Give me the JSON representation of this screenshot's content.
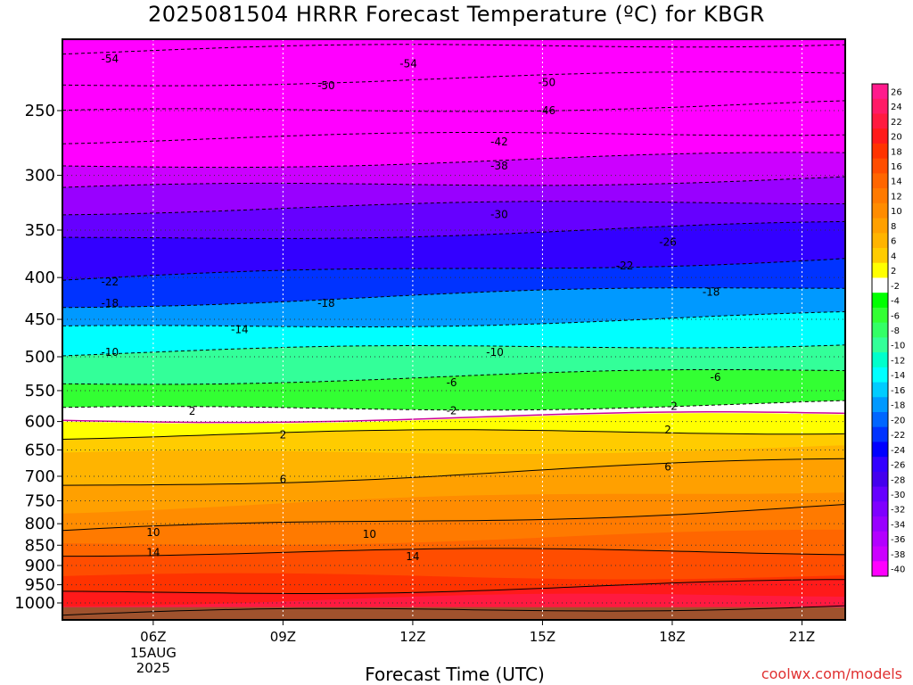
{
  "chart_data": {
    "type": "heatmap",
    "title": "2025081504 HRRR Forecast Temperature (ºC) for KBGR",
    "xlabel": "Forecast Time (UTC)",
    "ylabel": "",
    "credit": "coolwx.com/models",
    "x_ticks": [
      {
        "hour": 6,
        "label": "06Z",
        "sub": [
          "15AUG",
          "2025"
        ]
      },
      {
        "hour": 9,
        "label": "09Z"
      },
      {
        "hour": 12,
        "label": "12Z"
      },
      {
        "hour": 15,
        "label": "15Z"
      },
      {
        "hour": 18,
        "label": "18Z"
      },
      {
        "hour": 21,
        "label": "21Z"
      }
    ],
    "xlim": [
      3.9,
      22
    ],
    "y_scale": "log-pressure",
    "ylim": [
      1040,
      200
    ],
    "y_ticks": [
      250,
      300,
      350,
      400,
      450,
      500,
      550,
      600,
      650,
      700,
      750,
      800,
      850,
      900,
      950,
      1000
    ],
    "grid": true,
    "colorbar": {
      "unit": "ºC",
      "labels": [
        "26",
        "24",
        "22",
        "20",
        "18",
        "16",
        "14",
        "12",
        "10",
        "8",
        "6",
        "4",
        "2",
        "-2",
        "-4",
        "-6",
        "-8",
        "-10",
        "-12",
        "-14",
        "-16",
        "-18",
        "-20",
        "-22",
        "-24",
        "-26",
        "-28",
        "-30",
        "-32",
        "-34",
        "-36",
        "-38",
        "-40"
      ],
      "colors": [
        "#ff1a8c",
        "#ff1a66",
        "#ff1a40",
        "#ff1a1a",
        "#ff3300",
        "#ff4d00",
        "#ff6600",
        "#ff7a00",
        "#ff8c00",
        "#ffa000",
        "#ffb400",
        "#ffcc00",
        "#ffff00",
        "#ffffff",
        "#00ff00",
        "#33ff33",
        "#33ff66",
        "#33ff99",
        "#00ffcc",
        "#00ffff",
        "#00ccff",
        "#0099ff",
        "#0066ff",
        "#0033ff",
        "#0000ff",
        "#3300ff",
        "#4400ee",
        "#6600ff",
        "#7f00ff",
        "#9900ff",
        "#b300ff",
        "#cc00ff",
        "#ff00ff"
      ]
    },
    "annotations": [
      {
        "hour": 5.0,
        "p": 216,
        "text": "-54"
      },
      {
        "hour": 11.9,
        "p": 219,
        "text": "-54"
      },
      {
        "hour": 10.0,
        "p": 233,
        "text": "-50"
      },
      {
        "hour": 15.1,
        "p": 231,
        "text": "-50"
      },
      {
        "hour": 15.1,
        "p": 250,
        "text": "-46"
      },
      {
        "hour": 14.0,
        "p": 273,
        "text": "-42"
      },
      {
        "hour": 14.0,
        "p": 292,
        "text": "-38"
      },
      {
        "hour": 14.0,
        "p": 335,
        "text": "-30"
      },
      {
        "hour": 17.9,
        "p": 362,
        "text": "-26"
      },
      {
        "hour": 16.9,
        "p": 387,
        "text": "-22"
      },
      {
        "hour": 5.0,
        "p": 405,
        "text": "-22"
      },
      {
        "hour": 5.0,
        "p": 430,
        "text": "-18"
      },
      {
        "hour": 10.0,
        "p": 430,
        "text": "-18"
      },
      {
        "hour": 18.9,
        "p": 417,
        "text": "-18"
      },
      {
        "hour": 8.0,
        "p": 463,
        "text": "-14"
      },
      {
        "hour": 5.0,
        "p": 494,
        "text": "-10"
      },
      {
        "hour": 13.9,
        "p": 494,
        "text": "-10"
      },
      {
        "hour": 12.9,
        "p": 538,
        "text": "-6"
      },
      {
        "hour": 19.0,
        "p": 530,
        "text": "-6"
      },
      {
        "hour": 12.9,
        "p": 582,
        "text": "-2"
      },
      {
        "hour": 18.0,
        "p": 575,
        "text": "-2"
      },
      {
        "hour": 6.9,
        "p": 583,
        "text": "2"
      },
      {
        "hour": 9.0,
        "p": 623,
        "text": "2"
      },
      {
        "hour": 17.9,
        "p": 614,
        "text": "2"
      },
      {
        "hour": 9.0,
        "p": 706,
        "text": "6"
      },
      {
        "hour": 17.9,
        "p": 682,
        "text": "6"
      },
      {
        "hour": 6.0,
        "p": 820,
        "text": "10"
      },
      {
        "hour": 11.0,
        "p": 824,
        "text": "10"
      },
      {
        "hour": 6.0,
        "p": 868,
        "text": "14"
      },
      {
        "hour": 12.0,
        "p": 878,
        "text": "14"
      }
    ]
  }
}
